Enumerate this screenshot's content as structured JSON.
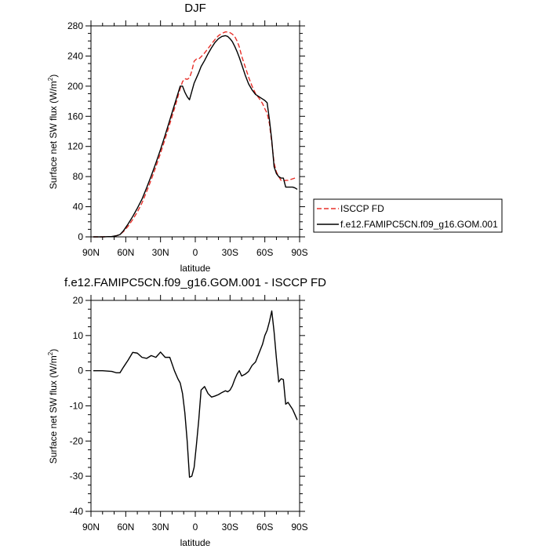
{
  "chart_data": [
    {
      "type": "line",
      "title": "DJF",
      "xlabel": "latitude",
      "ylabel": "Surface net SW flux (W/m",
      "ylabel_superscript": "2",
      "ylabel_close": ")",
      "xlim": [
        -90,
        90
      ],
      "ylim": [
        0,
        280
      ],
      "x_ticks": [
        -90,
        -60,
        -30,
        0,
        30,
        60,
        90
      ],
      "x_tick_labels": [
        "90N",
        "60N",
        "30N",
        "0",
        "30S",
        "60S",
        "90S"
      ],
      "y_ticks": [
        0,
        40,
        80,
        120,
        160,
        200,
        240,
        280
      ],
      "y_tick_labels": [
        "0",
        "40",
        "80",
        "120",
        "160",
        "200",
        "240",
        "280"
      ],
      "grid": false,
      "legend_position": "right",
      "series": [
        {
          "name": "ISCCP FD",
          "color": "#e8302a",
          "dash": "dashed",
          "x": [
            -88,
            -80,
            -72,
            -68,
            -65,
            -62,
            -58,
            -54,
            -50,
            -46,
            -42,
            -38,
            -34,
            -30,
            -26,
            -22,
            -18,
            -15,
            -13,
            -11,
            -9,
            -7,
            -5,
            -3,
            -1,
            1,
            3,
            5,
            8,
            11,
            14,
            17,
            20,
            23,
            26,
            28,
            30,
            32,
            34,
            36,
            38,
            40,
            43,
            46,
            49,
            52,
            55,
            58,
            60,
            62,
            64,
            66,
            68,
            70,
            72,
            74,
            76,
            78,
            80,
            82,
            84,
            86,
            88
          ],
          "y": [
            0,
            0,
            0.5,
            1.5,
            3,
            7,
            14,
            23,
            33,
            45,
            60,
            76,
            93,
            111,
            130,
            150,
            170,
            186,
            197,
            206,
            210,
            209,
            211,
            220,
            233,
            236,
            236,
            239,
            244,
            250,
            256,
            262,
            267,
            270,
            272,
            272,
            271,
            269,
            266,
            260,
            252,
            240,
            226,
            212,
            200,
            190,
            184,
            177,
            170,
            164,
            150,
            125,
            98,
            86,
            80,
            75,
            74,
            75,
            75,
            76,
            77,
            78,
            78
          ]
        },
        {
          "name": "f.e12.FAMIPC5CN.f09_g16.GOM.001",
          "color": "#000000",
          "dash": "solid",
          "x": [
            -88,
            -80,
            -72,
            -68,
            -65,
            -62,
            -58,
            -54,
            -50,
            -46,
            -42,
            -38,
            -34,
            -30,
            -26,
            -22,
            -18,
            -15,
            -13,
            -11,
            -9,
            -7,
            -5,
            -3,
            -1,
            1,
            3,
            5,
            8,
            11,
            14,
            17,
            20,
            23,
            26,
            28,
            30,
            32,
            34,
            36,
            38,
            40,
            43,
            46,
            49,
            52,
            55,
            58,
            60,
            62,
            64,
            66,
            68,
            70,
            72,
            74,
            76,
            78,
            80,
            82,
            84,
            86,
            88
          ],
          "y": [
            0,
            0,
            0.5,
            1.5,
            3,
            8,
            17,
            27,
            38,
            50,
            65,
            81,
            98,
            116,
            135,
            155,
            175,
            190,
            200,
            200,
            192,
            186,
            182,
            193,
            204,
            211,
            218,
            226,
            234,
            243,
            251,
            258,
            263,
            266,
            267,
            266,
            263,
            259,
            253,
            246,
            238,
            229,
            215,
            203,
            195,
            189,
            186,
            183,
            181,
            178,
            155,
            128,
            93,
            84,
            80,
            78,
            78,
            66,
            66,
            66,
            66,
            65,
            63
          ]
        }
      ]
    },
    {
      "type": "line",
      "title": "f.e12.FAMIPC5CN.f09_g16.GOM.001 - ISCCP FD",
      "xlabel": "latitude",
      "ylabel": "Surface net SW flux (W/m",
      "ylabel_superscript": "2",
      "ylabel_close": ")",
      "xlim": [
        -90,
        90
      ],
      "ylim": [
        -40,
        20
      ],
      "x_ticks": [
        -90,
        -60,
        -30,
        0,
        30,
        60,
        90
      ],
      "x_tick_labels": [
        "90N",
        "60N",
        "30N",
        "0",
        "30S",
        "60S",
        "90S"
      ],
      "y_ticks": [
        -40,
        -30,
        -20,
        -10,
        0,
        10,
        20
      ],
      "y_tick_labels": [
        "-40",
        "-30",
        "-20",
        "-10",
        "0",
        "10",
        "20"
      ],
      "grid": false,
      "series": [
        {
          "color": "#000000",
          "dash": "solid",
          "x": [
            -88,
            -80,
            -72,
            -68,
            -65,
            -62,
            -58,
            -54,
            -50,
            -46,
            -42,
            -38,
            -34,
            -30,
            -26,
            -22,
            -18,
            -15,
            -13,
            -11,
            -9,
            -7,
            -5,
            -3,
            -1,
            1,
            3,
            5,
            8,
            11,
            14,
            17,
            20,
            23,
            26,
            28,
            30,
            32,
            34,
            36,
            38,
            40,
            43,
            46,
            49,
            52,
            55,
            58,
            60,
            62,
            64,
            66,
            68,
            70,
            72,
            74,
            76,
            78,
            80,
            82,
            84,
            86,
            88
          ],
          "y": [
            0,
            0,
            -0.2,
            -0.6,
            -0.6,
            1,
            3,
            5.2,
            5,
            3.8,
            3.5,
            4.3,
            3.8,
            5.3,
            3.8,
            3.8,
            0,
            -2.3,
            -3.5,
            -6.5,
            -12,
            -20,
            -30.3,
            -30,
            -27.5,
            -21,
            -14,
            -5.5,
            -4.5,
            -6.5,
            -7.5,
            -7.2,
            -6.8,
            -6.2,
            -5.7,
            -6,
            -5.5,
            -4.3,
            -2.5,
            -1,
            0,
            -1.5,
            -1,
            -0.2,
            1.5,
            2.5,
            5,
            7.5,
            10,
            11.5,
            14,
            17,
            11,
            3.5,
            -3.2,
            -2.3,
            -2.5,
            -9.5,
            -9,
            -10,
            -11,
            -12.5,
            -14
          ]
        }
      ]
    }
  ]
}
